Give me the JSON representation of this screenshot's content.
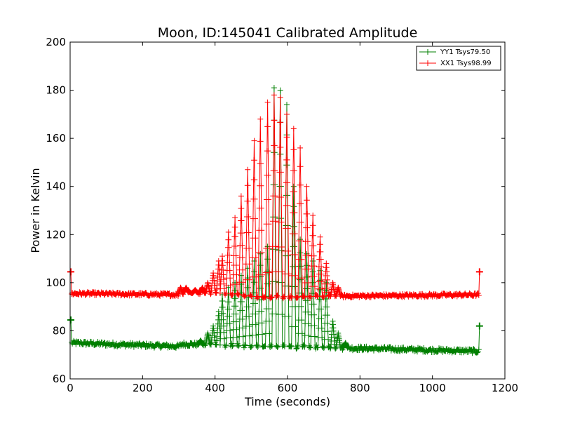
{
  "chart_data": {
    "type": "line",
    "title": "Moon, ID:145041 Calibrated Amplitude",
    "xlabel": "Time (seconds)",
    "ylabel": "Power in Kelvin",
    "xlim": [
      0,
      1200
    ],
    "ylim": [
      60,
      200
    ],
    "xticks": [
      0,
      200,
      400,
      600,
      800,
      1000,
      1200
    ],
    "yticks": [
      60,
      80,
      100,
      120,
      140,
      160,
      180,
      200
    ],
    "grid": false,
    "legend_position": "top-right",
    "series": [
      {
        "name": "YY1 Tsys79.50",
        "color": "#007f00",
        "marker": "+",
        "baseline": [
          [
            0,
            75
          ],
          [
            300,
            73.5
          ],
          [
            310,
            74.5
          ],
          [
            1130,
            71.5
          ]
        ],
        "noise": 0.9,
        "endpoints": [
          [
            2,
            84.5
          ],
          [
            1130,
            82
          ]
        ],
        "spikes": [
          [
            360,
            76
          ],
          [
            380,
            79
          ],
          [
            395,
            82
          ],
          [
            410,
            88
          ],
          [
            420,
            95
          ],
          [
            437,
            98
          ],
          [
            455,
            100
          ],
          [
            472,
            103
          ],
          [
            490,
            106
          ],
          [
            508,
            109
          ],
          [
            525,
            112
          ],
          [
            545,
            115
          ],
          [
            563,
            181
          ],
          [
            580,
            180
          ],
          [
            598,
            174
          ],
          [
            617,
            140
          ],
          [
            635,
            118
          ],
          [
            653,
            112
          ],
          [
            670,
            109
          ],
          [
            690,
            105
          ],
          [
            707,
            100
          ],
          [
            725,
            84
          ],
          [
            740,
            79
          ],
          [
            760,
            75
          ]
        ]
      },
      {
        "name": "XX1 Tsys98.99",
        "color": "#ff0000",
        "marker": "+",
        "baseline": [
          [
            0,
            95.5
          ],
          [
            300,
            95
          ],
          [
            320,
            96
          ],
          [
            450,
            95.5
          ],
          [
            520,
            94
          ],
          [
            800,
            94.5
          ],
          [
            1130,
            95
          ]
        ],
        "noise": 0.7,
        "endpoints": [
          [
            2,
            104.5
          ],
          [
            1130,
            104.5
          ]
        ],
        "spikes": [
          [
            305,
            98
          ],
          [
            320,
            98
          ],
          [
            345,
            97
          ],
          [
            365,
            98
          ],
          [
            380,
            100
          ],
          [
            395,
            104
          ],
          [
            410,
            109
          ],
          [
            420,
            111
          ],
          [
            437,
            121
          ],
          [
            455,
            127
          ],
          [
            472,
            136
          ],
          [
            490,
            147
          ],
          [
            508,
            159
          ],
          [
            525,
            168
          ],
          [
            545,
            175
          ],
          [
            563,
            178
          ],
          [
            580,
            177
          ],
          [
            598,
            170
          ],
          [
            617,
            164
          ],
          [
            635,
            156
          ],
          [
            653,
            140
          ],
          [
            670,
            128
          ],
          [
            690,
            119
          ],
          [
            707,
            108
          ],
          [
            725,
            100
          ],
          [
            740,
            98
          ]
        ]
      }
    ]
  }
}
